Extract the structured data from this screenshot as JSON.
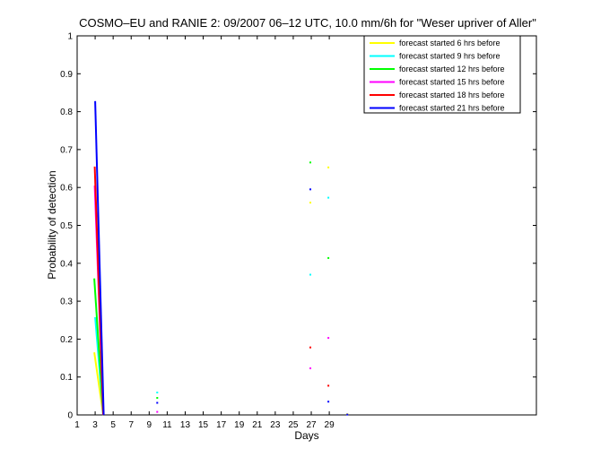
{
  "chart_data": {
    "type": "line",
    "title": "COSMO–EU and RANIE 2: 09/2007 06–12 UTC, 10.0 mm/6h for \"Weser upriver of Aller\"",
    "xlabel": "Days",
    "ylabel": "Probability of detection",
    "xlim": [
      1,
      52
    ],
    "ylim": [
      0,
      1
    ],
    "x_ticks": [
      1,
      3,
      5,
      7,
      9,
      11,
      13,
      15,
      17,
      19,
      21,
      23,
      25,
      27,
      29
    ],
    "x_tick_labels": [
      "1",
      "3",
      "5",
      "7",
      "9",
      "11",
      "13",
      "15",
      "17",
      "19",
      "21",
      "23",
      "25",
      "27",
      "29"
    ],
    "y_ticks": [
      0,
      0.1,
      0.2,
      0.3,
      0.4,
      0.5,
      0.6,
      0.7,
      0.8,
      0.9,
      1
    ],
    "y_tick_labels": [
      "0",
      "0.1",
      "0.2",
      "0.3",
      "0.4",
      "0.5",
      "0.6",
      "0.7",
      "0.8",
      "0.9",
      "1"
    ],
    "grid": false,
    "legend_position": "top-right",
    "series": [
      {
        "name": "forecast started 6 hrs before",
        "color": "#ffff00",
        "segments": [
          [
            [
              2.9,
              0.165
            ],
            [
              3.9,
              0.0
            ]
          ]
        ],
        "points": [
          [
            26.9,
            0.56
          ],
          [
            28.9,
            0.653
          ],
          [
            31.0,
            0.002
          ]
        ]
      },
      {
        "name": "forecast started 9 hrs before",
        "color": "#00ffff",
        "segments": [
          [
            [
              3.0,
              0.258
            ],
            [
              3.9,
              0.0
            ]
          ]
        ],
        "points": [
          [
            9.9,
            0.059
          ],
          [
            26.9,
            0.37
          ],
          [
            28.9,
            0.573
          ]
        ]
      },
      {
        "name": "forecast started 12 hrs before",
        "color": "#00ff00",
        "segments": [
          [
            [
              2.9,
              0.36
            ],
            [
              3.9,
              0.0
            ]
          ]
        ],
        "points": [
          [
            9.9,
            0.045
          ],
          [
            26.9,
            0.666
          ],
          [
            28.9,
            0.414
          ]
        ]
      },
      {
        "name": "forecast started 15 hrs before",
        "color": "#ff00ff",
        "segments": [
          [
            [
              2.95,
              0.605
            ],
            [
              3.9,
              0.0
            ]
          ]
        ],
        "points": [
          [
            9.9,
            0.008
          ],
          [
            26.9,
            0.123
          ],
          [
            28.9,
            0.203
          ]
        ]
      },
      {
        "name": "forecast started 18 hrs before",
        "color": "#ff0000",
        "segments": [
          [
            [
              2.95,
              0.655
            ],
            [
              3.9,
              0.0
            ]
          ]
        ],
        "points": [
          [
            26.9,
            0.178
          ],
          [
            28.9,
            0.077
          ]
        ]
      },
      {
        "name": "forecast started 21 hrs before",
        "color": "#0000ff",
        "segments": [
          [
            [
              3.0,
              0.828
            ],
            [
              3.95,
              0.0
            ]
          ]
        ],
        "points": [
          [
            9.9,
            0.032
          ],
          [
            26.9,
            0.595
          ],
          [
            28.9,
            0.035
          ],
          [
            31.0,
            0.001
          ]
        ]
      }
    ]
  }
}
